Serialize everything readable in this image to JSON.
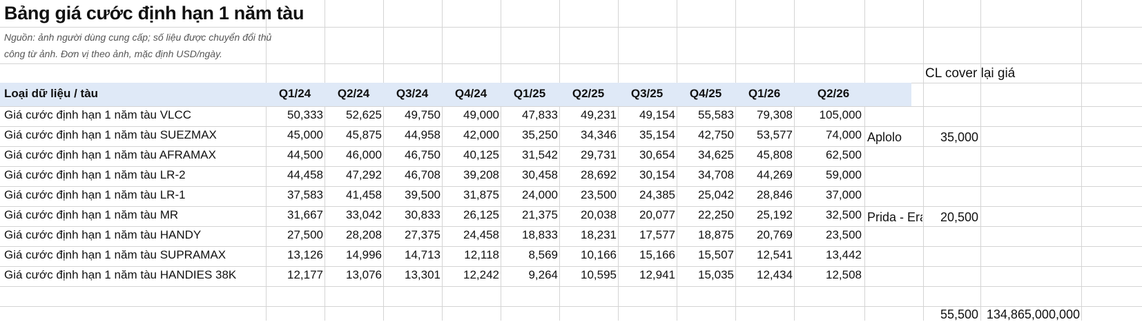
{
  "title": "Bảng giá cước định hạn 1 năm tàu",
  "note_line1": "Nguồn: ảnh người dùng cung cấp; số liệu được chuyển đổi thủ",
  "note_line2": "công từ ảnh. Đơn vị theo ảnh, mặc định USD/ngày.",
  "cl_cover_label": "CL cover lại giá",
  "table": {
    "header_label": "Loại dữ liệu / tàu",
    "quarters": [
      "Q1/24",
      "Q2/24",
      "Q3/24",
      "Q4/24",
      "Q1/25",
      "Q2/25",
      "Q3/25",
      "Q4/25",
      "Q1/26",
      "Q2/26"
    ],
    "rows": [
      {
        "label": "Giá cước định hạn 1 năm tàu VLCC",
        "values": [
          "50,333",
          "52,625",
          "49,750",
          "49,000",
          "47,833",
          "49,231",
          "49,154",
          "55,583",
          "79,308",
          "105,000"
        ]
      },
      {
        "label": "Giá cước định hạn 1 năm tàu SUEZMAX",
        "values": [
          "45,000",
          "45,875",
          "44,958",
          "42,000",
          "35,250",
          "34,346",
          "35,154",
          "42,750",
          "53,577",
          "74,000"
        ]
      },
      {
        "label": "Giá cước định hạn 1 năm tàu AFRAMAX",
        "values": [
          "44,500",
          "46,000",
          "46,750",
          "40,125",
          "31,542",
          "29,731",
          "30,654",
          "34,625",
          "45,808",
          "62,500"
        ]
      },
      {
        "label": "Giá cước định hạn 1 năm tàu LR-2",
        "values": [
          "44,458",
          "47,292",
          "46,708",
          "39,208",
          "30,458",
          "28,692",
          "30,154",
          "34,708",
          "44,269",
          "59,000"
        ]
      },
      {
        "label": "Giá cước định hạn 1 năm tàu LR-1",
        "values": [
          "37,583",
          "41,458",
          "39,500",
          "31,875",
          "24,000",
          "23,500",
          "24,385",
          "25,042",
          "28,846",
          "37,000"
        ]
      },
      {
        "label": "Giá cước định hạn 1 năm tàu MR",
        "values": [
          "31,667",
          "33,042",
          "30,833",
          "26,125",
          "21,375",
          "20,038",
          "20,077",
          "22,250",
          "25,192",
          "32,500"
        ]
      },
      {
        "label": "Giá cước định hạn 1 năm tàu HANDY",
        "values": [
          "27,500",
          "28,208",
          "27,375",
          "24,458",
          "18,833",
          "18,231",
          "17,577",
          "18,875",
          "20,769",
          "23,500"
        ]
      },
      {
        "label": "Giá cước định hạn 1 năm tàu SUPRAMAX",
        "values": [
          "13,126",
          "14,996",
          "14,713",
          "12,118",
          "8,569",
          "10,166",
          "15,166",
          "15,507",
          "12,541",
          "13,442"
        ]
      },
      {
        "label": "Giá cước định hạn 1 năm tàu HANDIES 38K",
        "values": [
          "12,177",
          "13,076",
          "13,301",
          "12,242",
          "9,264",
          "10,595",
          "12,941",
          "15,035",
          "12,434",
          "12,508"
        ]
      }
    ]
  },
  "side": {
    "aplolo_label": "Aplolo",
    "aplolo_value": "35,000",
    "prida_label": "Prida - Era",
    "prida_value": "20,500",
    "total_value": "55,500",
    "grand_total": "134,865,000,000"
  }
}
